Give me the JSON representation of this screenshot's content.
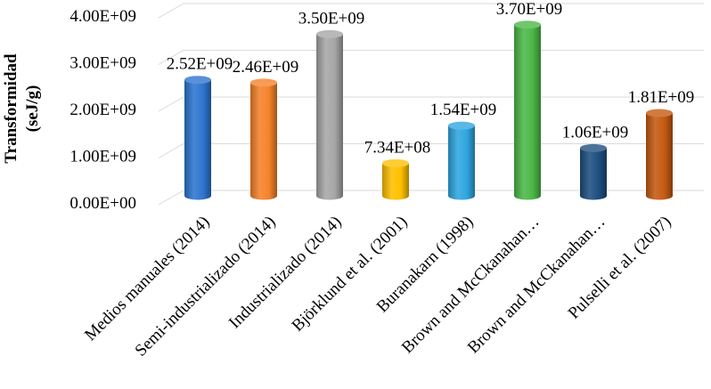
{
  "chart_data": {
    "type": "bar",
    "style": "3d-cylinder",
    "title": "",
    "xlabel": "",
    "ylabel_lines": [
      "Transformidad",
      "(seJ/g)"
    ],
    "ylim": [
      0,
      4000000000
    ],
    "yticks": [
      {
        "value": 0,
        "label": "0.00E+00"
      },
      {
        "value": 1000000000,
        "label": "1.00E+09"
      },
      {
        "value": 2000000000,
        "label": "2.00E+09"
      },
      {
        "value": 3000000000,
        "label": "3.00E+09"
      },
      {
        "value": 4000000000,
        "label": "4.00E+09"
      }
    ],
    "grid": true,
    "legend": "none",
    "categories": [
      "Medios manuales (2014)",
      "Semi-industrializado (2014)",
      "Industrializado (2014)",
      "Björklund et al. (2001)",
      "Buranakarn (1998)",
      "Brown and McCkanahan…",
      "Brown and McCkanahan…",
      "Pulselli et al. (2007)"
    ],
    "values": [
      2520000000,
      2460000000,
      3500000000,
      734000000,
      1540000000,
      3700000000,
      1060000000,
      1810000000
    ],
    "data_labels": [
      "2.52E+09",
      "2.46E+09",
      "3.50E+09",
      "7.34E+08",
      "1.54E+09",
      "3.70E+09",
      "1.06E+09",
      "1.81E+09"
    ],
    "colors": [
      "#2e75d0",
      "#f5822a",
      "#a6a6a6",
      "#ffc000",
      "#2fa6e0",
      "#4cb848",
      "#1e4f80",
      "#c55a11"
    ]
  }
}
